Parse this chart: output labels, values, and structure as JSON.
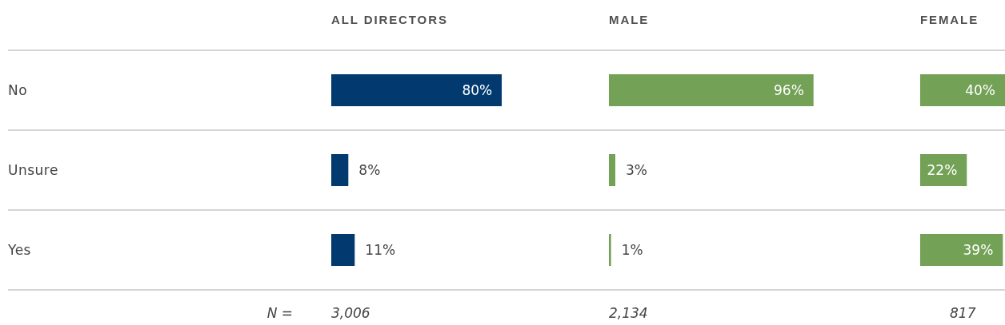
{
  "chart_data": [
    {
      "type": "bar",
      "orientation": "horizontal",
      "title": "ALL DIRECTORS",
      "categories": [
        "No",
        "Unsure",
        "Yes"
      ],
      "values": [
        80,
        8,
        11
      ],
      "value_labels": [
        "80%",
        "8%",
        "11%"
      ],
      "color": "#023a6f",
      "grid": "y",
      "tick_labels": "y",
      "annotations": [
        "N =",
        "3,006"
      ]
    },
    {
      "type": "bar",
      "orientation": "horizontal",
      "title": "MALE",
      "categories": [
        null,
        null,
        null
      ],
      "values": [
        96,
        3,
        1
      ],
      "value_labels": [
        "96%",
        "3%",
        "1%"
      ],
      "color": "#73a156",
      "grid": "y",
      "tick_labels": false,
      "annotations": [
        "2,134"
      ]
    },
    {
      "type": "bar",
      "orientation": "horizontal",
      "title": "FEMALE",
      "categories": [
        null,
        null,
        null
      ],
      "values": [
        40,
        22,
        39
      ],
      "value_labels": [
        "40%",
        "22%",
        "39%"
      ],
      "color": "#73a156",
      "grid": "y",
      "tick_labels": false,
      "annotations": [
        "817"
      ]
    }
  ]
}
